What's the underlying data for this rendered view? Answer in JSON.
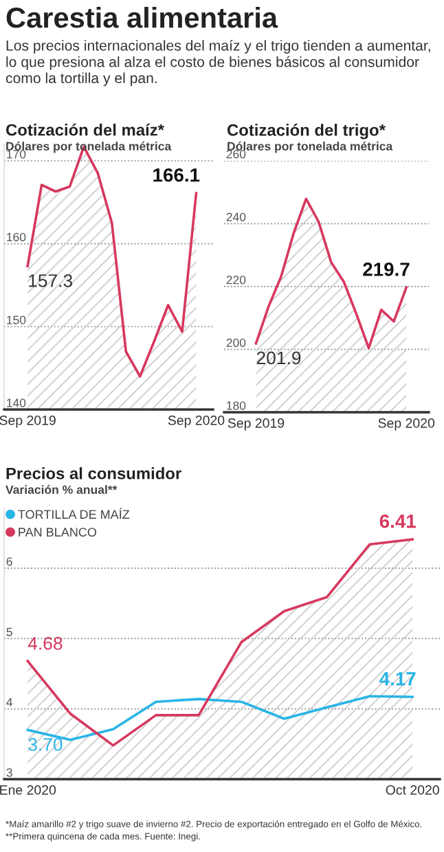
{
  "chart_data": [
    {
      "type": "other",
      "title": "Carestia alimentaria",
      "subtitle": "Los precios internacionales del maíz y el trigo tienden a aumentar, lo que presiona al alza el costo de bienes básicos al consumidor como la tortilla y el pan."
    },
    {
      "type": "area",
      "title": "Cotización del maíz*",
      "subtitle": "Dólares por tonelada métrica",
      "categories": [
        "Sep 2019",
        null,
        null,
        null,
        null,
        null,
        null,
        null,
        null,
        null,
        null,
        null,
        "Sep 2020"
      ],
      "series": [
        {
          "color": "#d7385e",
          "values": [
            157.3,
            167.1,
            166.3,
            166.9,
            171.7,
            168.5,
            162.5,
            147.0,
            144.0,
            148.2,
            152.6,
            149.4,
            166.1
          ],
          "value_labels": [
            "157.3",
            null,
            null,
            null,
            null,
            null,
            null,
            null,
            null,
            null,
            null,
            null,
            "166.1"
          ]
        }
      ],
      "ylim": [
        140,
        172
      ],
      "yticks": [
        140,
        150,
        160,
        170
      ],
      "grid": "y"
    },
    {
      "type": "area",
      "title": "Cotización del trigo*",
      "subtitle": "Dólares por tonelada métrica",
      "categories": [
        "Sep 2019",
        null,
        null,
        null,
        null,
        null,
        null,
        null,
        null,
        null,
        null,
        null,
        "Sep 2020"
      ],
      "series": [
        {
          "color": "#d7385e",
          "values": [
            201.9,
            213.6,
            223.1,
            236.9,
            247.9,
            240.6,
            227.7,
            221.6,
            211.4,
            200.4,
            212.6,
            208.9,
            219.7
          ],
          "value_labels": [
            "201.9",
            null,
            null,
            null,
            null,
            null,
            null,
            null,
            null,
            null,
            null,
            null,
            "219.7"
          ]
        }
      ],
      "ylim": [
        180,
        260
      ],
      "yticks": [
        180,
        200,
        220,
        240,
        260
      ],
      "grid": "y"
    },
    {
      "type": "area",
      "title": "Precios al consumidor",
      "subtitle": "Variación % anual**",
      "categories": [
        "Ene 2020",
        null,
        null,
        null,
        null,
        null,
        null,
        null,
        null,
        "Oct 2020"
      ],
      "series": [
        {
          "name": "TORTILLA DE MAÍZ",
          "type": "line",
          "color": "#29b4e6",
          "values": [
            3.7,
            3.56,
            3.71,
            4.1,
            4.14,
            4.1,
            3.86,
            4.02,
            4.18,
            4.17
          ],
          "value_labels": [
            "3.70",
            null,
            null,
            null,
            null,
            null,
            null,
            null,
            null,
            "4.17"
          ]
        },
        {
          "name": "PAN BLANCO",
          "color": "#d7385e",
          "values": [
            4.68,
            3.93,
            3.48,
            3.91,
            3.91,
            4.95,
            5.39,
            5.59,
            6.34,
            6.41
          ],
          "value_labels": [
            "4.68",
            null,
            null,
            null,
            null,
            null,
            null,
            null,
            null,
            "6.41"
          ]
        }
      ],
      "ylim": [
        3,
        6.85
      ],
      "yticks": [
        3,
        4,
        5,
        6
      ],
      "grid": "y",
      "legend": "top left",
      "annotations": [
        "*Maíz amarillo #2 y trigo suave de invierno #2. Precio de exportación entregado en el Golfo de México.",
        "**Primera quincena de cada mes. Fuente: Inegi."
      ]
    }
  ]
}
